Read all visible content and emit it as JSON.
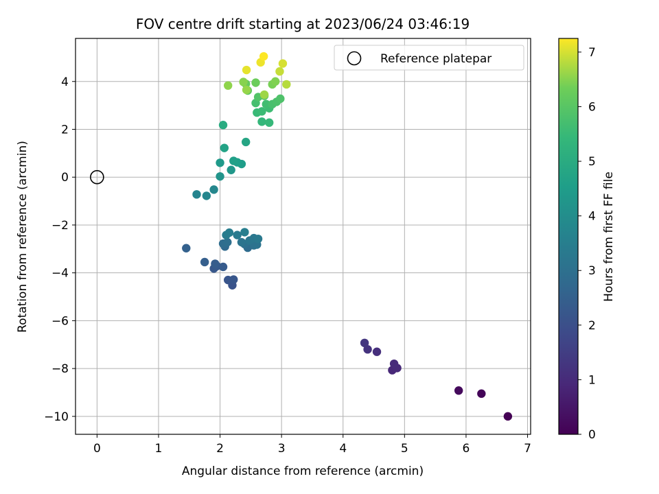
{
  "chart_data": {
    "type": "scatter",
    "title": "FOV centre drift starting at 2023/06/24 03:46:19",
    "xlabel": "Angular distance from reference (arcmin)",
    "ylabel": "Rotation from reference (arcmin)",
    "xlim": [
      -0.35,
      7.05
    ],
    "ylim": [
      -10.75,
      5.8
    ],
    "xticks": [
      0,
      1,
      2,
      3,
      4,
      5,
      6,
      7
    ],
    "yticks": [
      -10,
      -8,
      -6,
      -4,
      -2,
      0,
      2,
      4
    ],
    "xtick_labels": [
      "0",
      "1",
      "2",
      "3",
      "4",
      "5",
      "6",
      "7"
    ],
    "ytick_labels": [
      "−10",
      "−8",
      "−6",
      "−4",
      "−2",
      "0",
      "2",
      "4"
    ],
    "grid": true,
    "legend": {
      "position": "top-right",
      "entries": [
        "Reference platepar"
      ]
    },
    "reference_point": {
      "x": 0,
      "y": 0
    },
    "colorbar": {
      "label": "Hours from first FF file",
      "min": 0,
      "max": 7.25,
      "colormap": "viridis",
      "ticks": [
        0,
        1,
        2,
        3,
        4,
        5,
        6,
        7
      ],
      "tick_labels": [
        "0",
        "1",
        "2",
        "3",
        "4",
        "5",
        "6",
        "7"
      ]
    },
    "points": [
      {
        "x": 6.68,
        "y": -10.0,
        "c": 0.0
      },
      {
        "x": 6.25,
        "y": -9.05,
        "c": 0.1
      },
      {
        "x": 5.88,
        "y": -8.92,
        "c": 0.2
      },
      {
        "x": 4.8,
        "y": -8.07,
        "c": 0.9
      },
      {
        "x": 4.88,
        "y": -7.98,
        "c": 0.95
      },
      {
        "x": 4.83,
        "y": -7.8,
        "c": 1.0
      },
      {
        "x": 4.55,
        "y": -7.3,
        "c": 1.1
      },
      {
        "x": 4.4,
        "y": -7.2,
        "c": 1.2
      },
      {
        "x": 4.35,
        "y": -6.93,
        "c": 1.3
      },
      {
        "x": 2.2,
        "y": -4.52,
        "c": 2.1
      },
      {
        "x": 2.13,
        "y": -4.3,
        "c": 2.15
      },
      {
        "x": 2.22,
        "y": -4.28,
        "c": 2.2
      },
      {
        "x": 1.9,
        "y": -3.82,
        "c": 2.25
      },
      {
        "x": 1.95,
        "y": -3.72,
        "c": 2.3
      },
      {
        "x": 2.05,
        "y": -3.75,
        "c": 2.35
      },
      {
        "x": 1.92,
        "y": -3.62,
        "c": 2.4
      },
      {
        "x": 1.75,
        "y": -3.55,
        "c": 2.45
      },
      {
        "x": 1.45,
        "y": -2.97,
        "c": 2.5
      },
      {
        "x": 2.08,
        "y": -2.9,
        "c": 2.8
      },
      {
        "x": 2.45,
        "y": -2.95,
        "c": 2.85
      },
      {
        "x": 2.05,
        "y": -2.78,
        "c": 2.9
      },
      {
        "x": 2.12,
        "y": -2.72,
        "c": 2.95
      },
      {
        "x": 2.4,
        "y": -2.8,
        "c": 3.0
      },
      {
        "x": 2.55,
        "y": -2.85,
        "c": 3.05
      },
      {
        "x": 2.6,
        "y": -2.82,
        "c": 3.1
      },
      {
        "x": 2.35,
        "y": -2.72,
        "c": 3.15
      },
      {
        "x": 2.48,
        "y": -2.65,
        "c": 3.2
      },
      {
        "x": 2.55,
        "y": -2.55,
        "c": 3.25
      },
      {
        "x": 2.62,
        "y": -2.58,
        "c": 3.3
      },
      {
        "x": 2.28,
        "y": -2.42,
        "c": 3.35
      },
      {
        "x": 2.1,
        "y": -2.42,
        "c": 3.4
      },
      {
        "x": 2.15,
        "y": -2.32,
        "c": 3.45
      },
      {
        "x": 2.4,
        "y": -2.3,
        "c": 3.5
      },
      {
        "x": 1.62,
        "y": -0.72,
        "c": 3.7
      },
      {
        "x": 1.78,
        "y": -0.78,
        "c": 3.75
      },
      {
        "x": 1.9,
        "y": -0.52,
        "c": 3.8
      },
      {
        "x": 2.0,
        "y": 0.03,
        "c": 4.2
      },
      {
        "x": 2.18,
        "y": 0.3,
        "c": 4.3
      },
      {
        "x": 2.0,
        "y": 0.6,
        "c": 4.4
      },
      {
        "x": 2.35,
        "y": 0.55,
        "c": 4.5
      },
      {
        "x": 2.28,
        "y": 0.62,
        "c": 4.55
      },
      {
        "x": 2.22,
        "y": 0.68,
        "c": 4.6
      },
      {
        "x": 2.07,
        "y": 1.22,
        "c": 4.7
      },
      {
        "x": 2.42,
        "y": 1.47,
        "c": 4.8
      },
      {
        "x": 2.05,
        "y": 2.18,
        "c": 5.0
      },
      {
        "x": 2.68,
        "y": 2.32,
        "c": 5.4
      },
      {
        "x": 2.8,
        "y": 2.28,
        "c": 5.45
      },
      {
        "x": 2.6,
        "y": 2.7,
        "c": 5.5
      },
      {
        "x": 2.68,
        "y": 2.75,
        "c": 5.55
      },
      {
        "x": 2.8,
        "y": 2.88,
        "c": 5.6
      },
      {
        "x": 2.75,
        "y": 3.05,
        "c": 5.65
      },
      {
        "x": 2.58,
        "y": 3.1,
        "c": 5.7
      },
      {
        "x": 2.85,
        "y": 3.05,
        "c": 5.75
      },
      {
        "x": 2.92,
        "y": 3.15,
        "c": 5.8
      },
      {
        "x": 2.98,
        "y": 3.28,
        "c": 5.85
      },
      {
        "x": 2.62,
        "y": 3.35,
        "c": 5.9
      },
      {
        "x": 2.72,
        "y": 3.4,
        "c": 5.95
      },
      {
        "x": 2.45,
        "y": 3.62,
        "c": 6.1
      },
      {
        "x": 2.42,
        "y": 3.9,
        "c": 6.2
      },
      {
        "x": 2.58,
        "y": 3.95,
        "c": 6.3
      },
      {
        "x": 2.85,
        "y": 3.88,
        "c": 6.4
      },
      {
        "x": 2.9,
        "y": 4.0,
        "c": 6.45
      },
      {
        "x": 2.38,
        "y": 3.98,
        "c": 6.5
      },
      {
        "x": 2.13,
        "y": 3.83,
        "c": 6.55
      },
      {
        "x": 2.43,
        "y": 3.65,
        "c": 6.6
      },
      {
        "x": 2.72,
        "y": 3.45,
        "c": 6.65
      },
      {
        "x": 3.08,
        "y": 3.88,
        "c": 6.8
      },
      {
        "x": 2.97,
        "y": 4.42,
        "c": 6.9
      },
      {
        "x": 3.02,
        "y": 4.75,
        "c": 7.0
      },
      {
        "x": 2.43,
        "y": 4.48,
        "c": 7.1
      },
      {
        "x": 2.66,
        "y": 4.8,
        "c": 7.15
      },
      {
        "x": 2.71,
        "y": 5.05,
        "c": 7.25
      }
    ]
  }
}
